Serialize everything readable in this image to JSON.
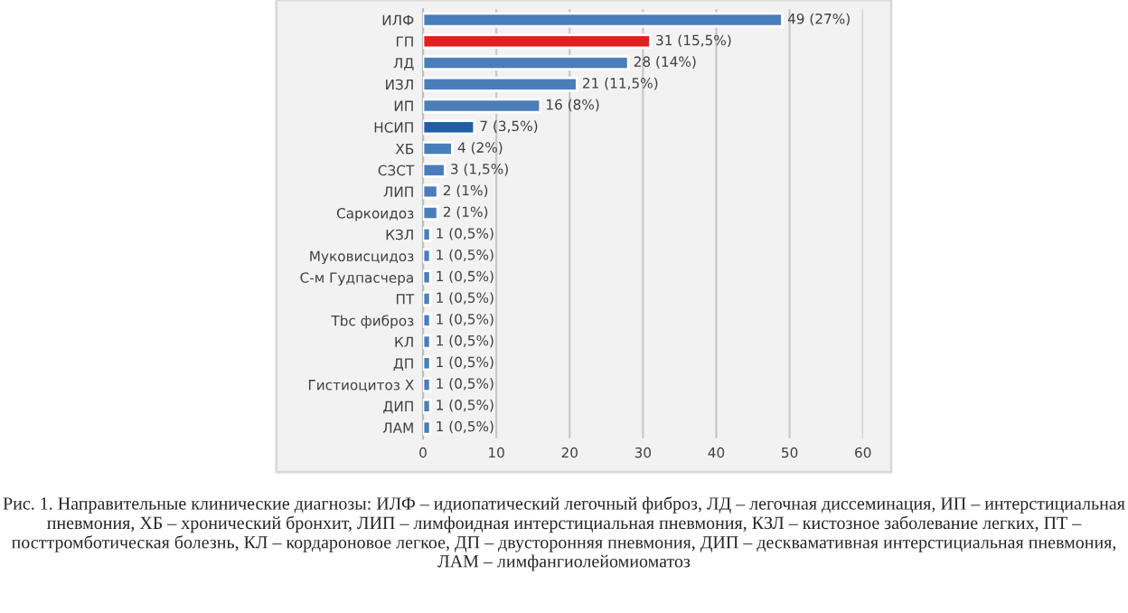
{
  "chart_data": {
    "type": "bar",
    "orientation": "horizontal",
    "categories": [
      "ИЛФ",
      "ГП",
      "ЛД",
      "ИЗЛ",
      "ИП",
      "НСИП",
      "ХБ",
      "СЗСТ",
      "ЛИП",
      "Саркоидоз",
      "КЗЛ",
      "Муковисцидоз",
      "С-м Гудпасчера",
      "ПТ",
      "Тbc фиброз",
      "КЛ",
      "ДП",
      "Гистиоцитоз Х",
      "ДИП",
      "ЛАМ"
    ],
    "values": [
      49,
      31,
      28,
      21,
      16,
      7,
      4,
      3,
      2,
      2,
      1,
      1,
      1,
      1,
      1,
      1,
      1,
      1,
      1,
      1
    ],
    "colors": [
      "#4a7ebb",
      "#e0201f",
      "#4a7ebb",
      "#4a7ebb",
      "#4a7ebb",
      "#1f5fa8",
      "#4a7ebb",
      "#4a7ebb",
      "#4a7ebb",
      "#4a7ebb",
      "#4a7ebb",
      "#4a7ebb",
      "#4a7ebb",
      "#4a7ebb",
      "#4a7ebb",
      "#4a7ebb",
      "#4a7ebb",
      "#4a7ebb",
      "#4a7ebb",
      "#4a7ebb"
    ],
    "value_labels": [
      "49 (27%)",
      "31 (15,5%)",
      "28 (14%)",
      "21 (11,5%)",
      "16 (8%)",
      "7 (3,5%)",
      "4 (2%)",
      "3 (1,5%)",
      "2 (1%)",
      "2 (1%)",
      "1 (0,5%)",
      "1 (0,5%)",
      "1 (0,5%)",
      "1 (0,5%)",
      "1 (0,5%)",
      "1 (0,5%)",
      "1 (0,5%)",
      "1 (0,5%)",
      "1 (0,5%)",
      "1 (0,5%)"
    ],
    "xlim": [
      0,
      60
    ],
    "xticks": [
      0,
      10,
      20,
      30,
      40,
      50,
      60
    ],
    "grid": "x",
    "legend": false,
    "annotations": [
      "Рис. 1. Направительные клинические диагнозы: ИЛФ – идиопатический легочный фиброз, ЛД – легочная диссеминация, ИП – интерстициальная пневмония, ХБ – хронический бронхит, ЛИП – лимфоидная интерстициальная пневмония, КЗЛ – кистозное заболевание легких, ПТ – посттромботическая болезнь, КЛ – кордароновое легкое, ДП – двусторонняя пневмония, ДИП – десквамативная интерстициальная пневмония, ЛАМ – лимфангиолейомиоматоз"
    ]
  }
}
